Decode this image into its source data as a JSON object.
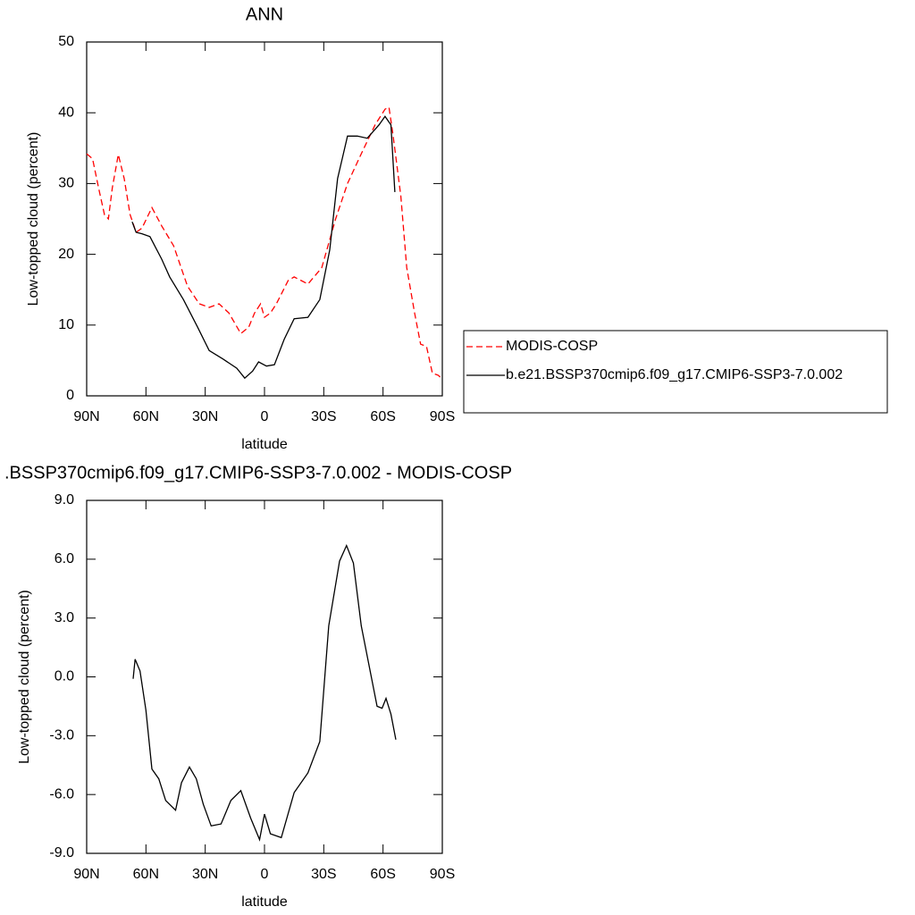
{
  "chart_data": [
    {
      "type": "line",
      "title": "ANN",
      "xlabel": "latitude",
      "ylabel": "Low-topped cloud (percent)",
      "xlim": [
        90,
        -90
      ],
      "xticks": [
        {
          "value": 90,
          "label": "90N"
        },
        {
          "value": 60,
          "label": "60N"
        },
        {
          "value": 30,
          "label": "30N"
        },
        0,
        {
          "value": -30,
          "label": "30S"
        },
        {
          "value": -60,
          "label": "60S"
        },
        {
          "value": -90,
          "label": "90S"
        }
      ],
      "ylim": [
        0,
        50
      ],
      "yticks": [
        0,
        10,
        20,
        30,
        40,
        50
      ],
      "legend": "right",
      "series": [
        {
          "name": "MODIS-COSP",
          "color": "#ff0000",
          "line_style": "dashed",
          "x": [
            90,
            87,
            84,
            81,
            79,
            77,
            74,
            71,
            68,
            65,
            62,
            57,
            52,
            46,
            39,
            33,
            28,
            23,
            18,
            12,
            8,
            5,
            2,
            0,
            -3,
            -6,
            -12,
            -15,
            -22,
            -29,
            -36,
            -42,
            -49,
            -56,
            -61,
            -63,
            -65,
            -69,
            -72,
            -76,
            -79,
            -82,
            -85,
            -88,
            -90
          ],
          "values": [
            34.2,
            33.5,
            29.4,
            25.6,
            25,
            29.4,
            34.1,
            30.7,
            25.6,
            23.1,
            23.7,
            26.6,
            24,
            21.2,
            15.5,
            13,
            12.5,
            13,
            11.7,
            8.8,
            9.7,
            11.7,
            13,
            11.1,
            11.7,
            13,
            16.3,
            16.8,
            15.8,
            18.1,
            25,
            30,
            34.2,
            38.3,
            40.5,
            40.8,
            37,
            28.2,
            18.1,
            11.7,
            7.3,
            7,
            3.2,
            2.9,
            2.3
          ]
        },
        {
          "name": "b.e21.BSSP370cmip6.f09_g17.CMIP6-SSP3-7.0.002",
          "color": "#000000",
          "line_style": "solid",
          "x": [
            67,
            65,
            62,
            58,
            52,
            48,
            41,
            34,
            28,
            21,
            14,
            10,
            6,
            3,
            -1,
            -5,
            -10,
            -15,
            -22,
            -28,
            -33,
            -37,
            -42,
            -47,
            -52,
            -58,
            -61,
            -64,
            -66
          ],
          "values": [
            24.6,
            23.1,
            22.9,
            22.5,
            19.3,
            16.8,
            13.6,
            9.8,
            6.4,
            5.2,
            3.9,
            2.5,
            3.5,
            4.8,
            4.2,
            4.4,
            8,
            10.9,
            11.1,
            13.6,
            20.6,
            30.7,
            36.7,
            36.7,
            36.4,
            38.3,
            39.5,
            38.3,
            28.8
          ]
        }
      ]
    },
    {
      "type": "line",
      "title": ".BSSP370cmip6.f09_g17.CMIP6-SSP3-7.0.002 - MODIS-COSP",
      "xlabel": "latitude",
      "ylabel": "Low-topped cloud (percent)",
      "xlim": [
        90,
        -90
      ],
      "xticks": [
        {
          "value": 90,
          "label": "90N"
        },
        {
          "value": 60,
          "label": "60N"
        },
        {
          "value": 30,
          "label": "30N"
        },
        0,
        {
          "value": -30,
          "label": "30S"
        },
        {
          "value": -60,
          "label": "60S"
        },
        {
          "value": -90,
          "label": "90S"
        }
      ],
      "ylim": [
        -9,
        9
      ],
      "yticks": [
        {
          "value": -9,
          "label": "-9.0"
        },
        {
          "value": -6,
          "label": "-6.0"
        },
        {
          "value": -3,
          "label": "-3.0"
        },
        {
          "value": 0,
          "label": "0.0"
        },
        {
          "value": 3,
          "label": "3.0"
        },
        {
          "value": 6,
          "label": "6.0"
        },
        {
          "value": 9,
          "label": "9.0"
        }
      ],
      "series": [
        {
          "color": "#000000",
          "line_style": "solid",
          "x": [
            66.5,
            65.5,
            63,
            60,
            57,
            53.5,
            50,
            45,
            42,
            38,
            34.5,
            31,
            27,
            22,
            17,
            12,
            7,
            2.5,
            0,
            -3,
            -8.5,
            -15,
            -22,
            -28,
            -32.5,
            -38,
            -41.5,
            -45,
            -49,
            -57,
            -59.5,
            -61.5,
            -64,
            -66.5
          ],
          "values": [
            -0.1,
            0.9,
            0.3,
            -1.7,
            -4.7,
            -5.2,
            -6.3,
            -6.8,
            -5.4,
            -4.6,
            -5.2,
            -6.5,
            -7.6,
            -7.5,
            -6.3,
            -5.8,
            -7.2,
            -8.3,
            -7,
            -8,
            -8.2,
            -5.9,
            -4.9,
            -3.3,
            2.6,
            5.9,
            6.7,
            5.8,
            2.6,
            -1.5,
            -1.6,
            -1.1,
            -1.9,
            -3.2
          ]
        }
      ]
    }
  ]
}
